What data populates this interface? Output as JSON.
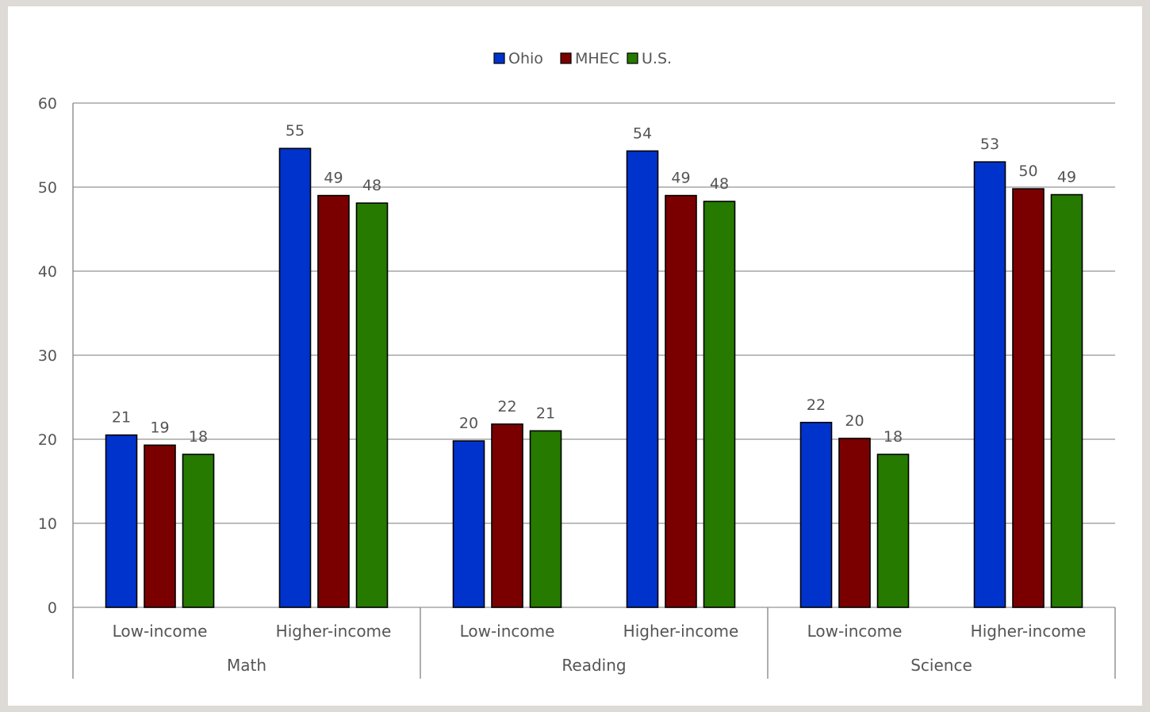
{
  "chart_data": {
    "type": "bar",
    "title": "",
    "xlabel": "",
    "ylabel": "",
    "ylim": [
      0,
      60
    ],
    "yticks": [
      0,
      10,
      20,
      30,
      40,
      50,
      60
    ],
    "grid": true,
    "legend_position": "top-center",
    "groups": [
      {
        "label": "Math",
        "categories": [
          "Low-income",
          "Higher-income"
        ]
      },
      {
        "label": "Reading",
        "categories": [
          "Low-income",
          "Higher-income"
        ]
      },
      {
        "label": "Science",
        "categories": [
          "Low-income",
          "Higher-income"
        ]
      }
    ],
    "series": [
      {
        "name": "Ohio",
        "color": "#0033cc",
        "values": [
          20.5,
          54.6,
          19.8,
          54.3,
          22.0,
          53.0
        ],
        "labels": [
          "21",
          "55",
          "20",
          "54",
          "22",
          "53"
        ]
      },
      {
        "name": "MHEC",
        "color": "#7a0000",
        "values": [
          19.3,
          49.0,
          21.8,
          49.0,
          20.1,
          49.8
        ],
        "labels": [
          "19",
          "49",
          "22",
          "49",
          "20",
          "50"
        ]
      },
      {
        "name": "U.S.",
        "color": "#267a00",
        "values": [
          18.2,
          48.1,
          21.0,
          48.3,
          18.2,
          49.1
        ],
        "labels": [
          "18",
          "48",
          "21",
          "48",
          "18",
          "49"
        ]
      }
    ]
  }
}
